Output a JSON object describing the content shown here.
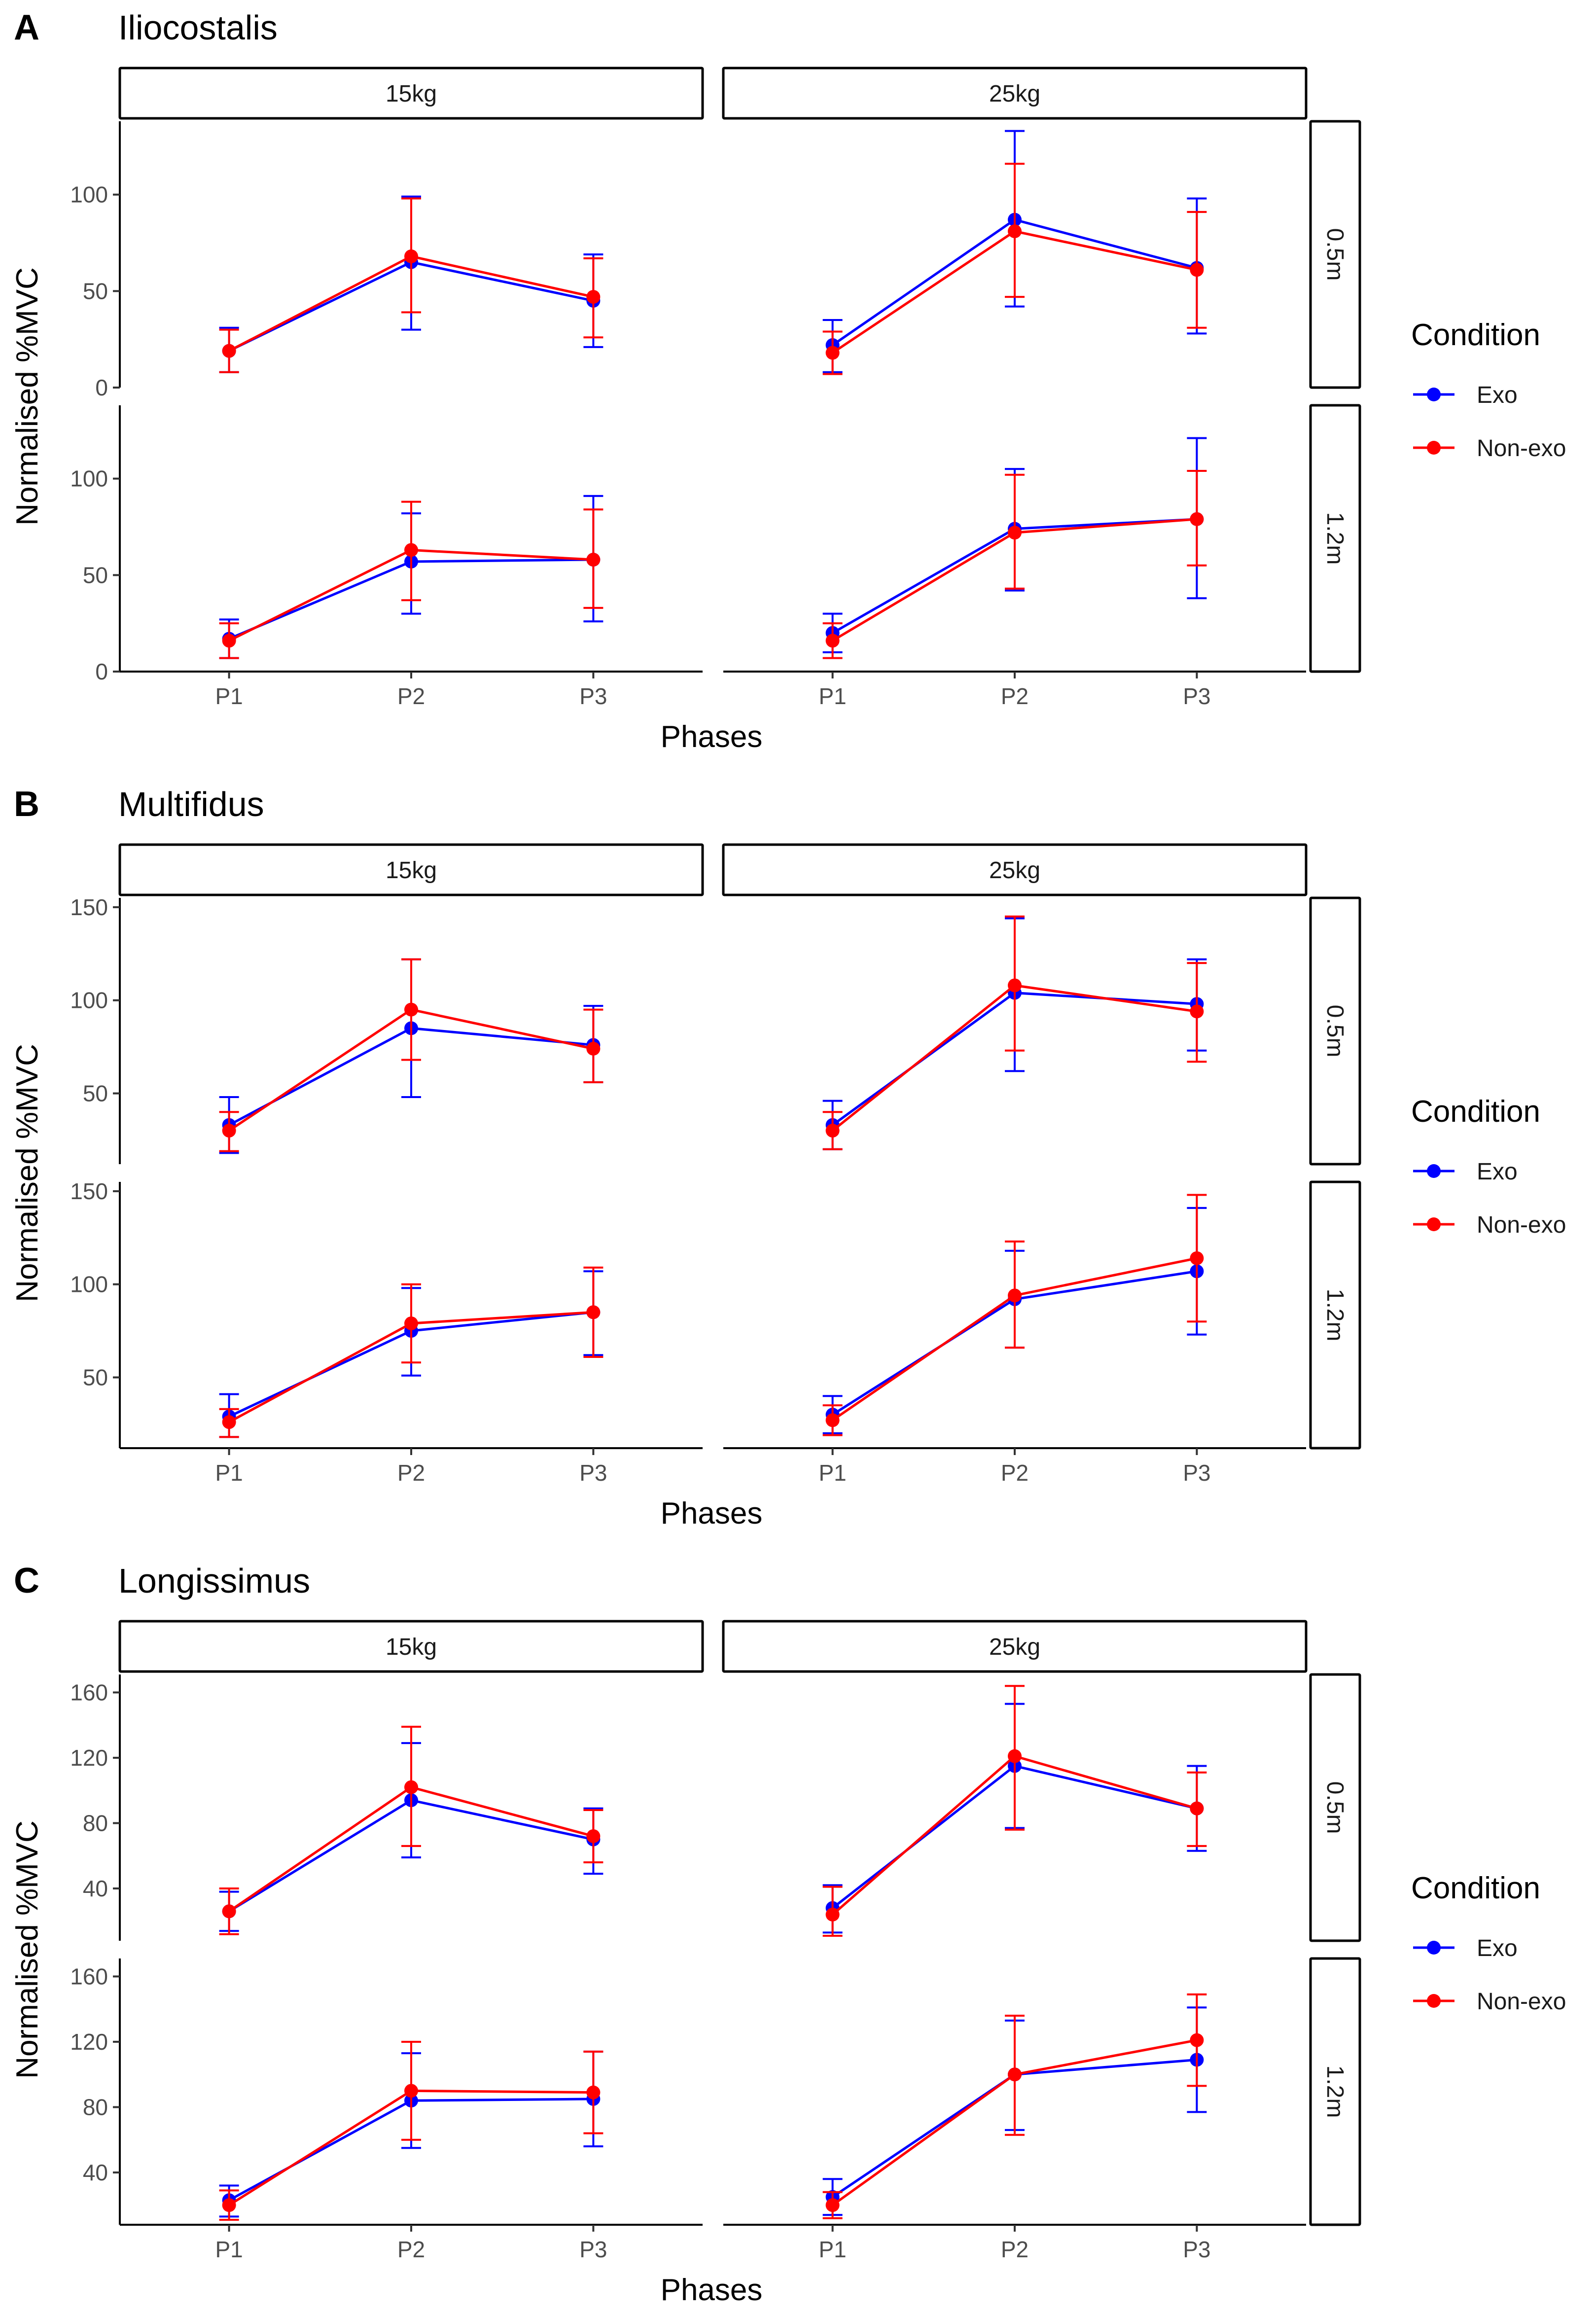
{
  "figure": {
    "legend": {
      "title": "Condition"
    },
    "x_axis_title": "Phases",
    "y_axis_title": "Normalised %MVC"
  },
  "chart_data": [
    {
      "type": "line",
      "panel_letter": "A",
      "title": "Iliocostalis",
      "xlabel": "Phases",
      "ylabel": "Normalised %MVC",
      "categories": [
        "P1",
        "P2",
        "P3"
      ],
      "column_facets": [
        "15kg",
        "25kg"
      ],
      "row_facets": [
        "0.5m",
        "1.2m"
      ],
      "ylim": [
        0,
        138
      ],
      "yticks": [
        0,
        50,
        100
      ],
      "legend": [
        {
          "name": "Exo",
          "color": "#0000ff"
        },
        {
          "name": "Non-exo",
          "color": "#ff0000"
        }
      ],
      "facets": [
        {
          "col": "15kg",
          "row": "0.5m",
          "series": [
            {
              "name": "Exo",
              "mean": [
                19,
                65,
                45
              ],
              "lower": [
                8,
                30,
                21
              ],
              "upper": [
                31,
                99,
                69
              ]
            },
            {
              "name": "Non-exo",
              "mean": [
                19,
                68,
                47
              ],
              "lower": [
                8,
                39,
                26
              ],
              "upper": [
                30,
                98,
                67
              ]
            }
          ]
        },
        {
          "col": "25kg",
          "row": "0.5m",
          "series": [
            {
              "name": "Exo",
              "mean": [
                22,
                87,
                62
              ],
              "lower": [
                8,
                42,
                28
              ],
              "upper": [
                35,
                133,
                98
              ]
            },
            {
              "name": "Non-exo",
              "mean": [
                18,
                81,
                61
              ],
              "lower": [
                7,
                47,
                31
              ],
              "upper": [
                29,
                116,
                91
              ]
            }
          ]
        },
        {
          "col": "15kg",
          "row": "1.2m",
          "series": [
            {
              "name": "Exo",
              "mean": [
                17,
                57,
                58
              ],
              "lower": [
                7,
                30,
                26
              ],
              "upper": [
                27,
                82,
                91
              ]
            },
            {
              "name": "Non-exo",
              "mean": [
                16,
                63,
                58
              ],
              "lower": [
                7,
                37,
                33
              ],
              "upper": [
                25,
                88,
                84
              ]
            }
          ]
        },
        {
          "col": "25kg",
          "row": "1.2m",
          "series": [
            {
              "name": "Exo",
              "mean": [
                20,
                74,
                79
              ],
              "lower": [
                10,
                42,
                38
              ],
              "upper": [
                30,
                105,
                121
              ]
            },
            {
              "name": "Non-exo",
              "mean": [
                16,
                72,
                79
              ],
              "lower": [
                7,
                43,
                55
              ],
              "upper": [
                25,
                102,
                104
              ]
            }
          ]
        }
      ]
    },
    {
      "type": "line",
      "panel_letter": "B",
      "title": "Multifidus",
      "xlabel": "Phases",
      "ylabel": "Normalised %MVC",
      "categories": [
        "P1",
        "P2",
        "P3"
      ],
      "column_facets": [
        "15kg",
        "25kg"
      ],
      "row_facets": [
        "0.5m",
        "1.2m"
      ],
      "ylim": [
        12,
        155
      ],
      "yticks": [
        50,
        100,
        150
      ],
      "legend": [
        {
          "name": "Exo",
          "color": "#0000ff"
        },
        {
          "name": "Non-exo",
          "color": "#ff0000"
        }
      ],
      "facets": [
        {
          "col": "15kg",
          "row": "0.5m",
          "series": [
            {
              "name": "Exo",
              "mean": [
                33,
                85,
                76
              ],
              "lower": [
                18,
                48,
                56
              ],
              "upper": [
                48,
                122,
                97
              ]
            },
            {
              "name": "Non-exo",
              "mean": [
                30,
                95,
                74
              ],
              "lower": [
                19,
                68,
                56
              ],
              "upper": [
                40,
                122,
                95
              ]
            }
          ]
        },
        {
          "col": "25kg",
          "row": "0.5m",
          "series": [
            {
              "name": "Exo",
              "mean": [
                33,
                104,
                98
              ],
              "lower": [
                20,
                62,
                73
              ],
              "upper": [
                46,
                144,
                122
              ]
            },
            {
              "name": "Non-exo",
              "mean": [
                30,
                108,
                94
              ],
              "lower": [
                20,
                73,
                67
              ],
              "upper": [
                40,
                145,
                120
              ]
            }
          ]
        },
        {
          "col": "15kg",
          "row": "1.2m",
          "series": [
            {
              "name": "Exo",
              "mean": [
                29,
                75,
                85
              ],
              "lower": [
                18,
                51,
                62
              ],
              "upper": [
                41,
                98,
                107
              ]
            },
            {
              "name": "Non-exo",
              "mean": [
                26,
                79,
                85
              ],
              "lower": [
                18,
                58,
                61
              ],
              "upper": [
                33,
                100,
                109
              ]
            }
          ]
        },
        {
          "col": "25kg",
          "row": "1.2m",
          "series": [
            {
              "name": "Exo",
              "mean": [
                30,
                92,
                107
              ],
              "lower": [
                20,
                66,
                73
              ],
              "upper": [
                40,
                118,
                141
              ]
            },
            {
              "name": "Non-exo",
              "mean": [
                27,
                94,
                114
              ],
              "lower": [
                19,
                66,
                80
              ],
              "upper": [
                35,
                123,
                148
              ]
            }
          ]
        }
      ]
    },
    {
      "type": "line",
      "panel_letter": "C",
      "title": "Longissimus",
      "xlabel": "Phases",
      "ylabel": "Normalised %MVC",
      "categories": [
        "P1",
        "P2",
        "P3"
      ],
      "column_facets": [
        "15kg",
        "25kg"
      ],
      "row_facets": [
        "0.5m",
        "1.2m"
      ],
      "ylim": [
        8,
        171
      ],
      "yticks": [
        40,
        80,
        120,
        160
      ],
      "legend": [
        {
          "name": "Exo",
          "color": "#0000ff"
        },
        {
          "name": "Non-exo",
          "color": "#ff0000"
        }
      ],
      "facets": [
        {
          "col": "15kg",
          "row": "0.5m",
          "series": [
            {
              "name": "Exo",
              "mean": [
                26,
                94,
                70
              ],
              "lower": [
                14,
                59,
                49
              ],
              "upper": [
                38,
                129,
                89
              ]
            },
            {
              "name": "Non-exo",
              "mean": [
                26,
                102,
                72
              ],
              "lower": [
                12,
                66,
                56
              ],
              "upper": [
                40,
                139,
                88
              ]
            }
          ]
        },
        {
          "col": "25kg",
          "row": "0.5m",
          "series": [
            {
              "name": "Exo",
              "mean": [
                28,
                115,
                89
              ],
              "lower": [
                13,
                77,
                63
              ],
              "upper": [
                42,
                153,
                115
              ]
            },
            {
              "name": "Non-exo",
              "mean": [
                24,
                121,
                89
              ],
              "lower": [
                11,
                76,
                66
              ],
              "upper": [
                41,
                164,
                111
              ]
            }
          ]
        },
        {
          "col": "15kg",
          "row": "1.2m",
          "series": [
            {
              "name": "Exo",
              "mean": [
                23,
                84,
                85
              ],
              "lower": [
                13,
                55,
                56
              ],
              "upper": [
                32,
                113,
                114
              ]
            },
            {
              "name": "Non-exo",
              "mean": [
                20,
                90,
                89
              ],
              "lower": [
                11,
                60,
                64
              ],
              "upper": [
                29,
                120,
                114
              ]
            }
          ]
        },
        {
          "col": "25kg",
          "row": "1.2m",
          "series": [
            {
              "name": "Exo",
              "mean": [
                25,
                100,
                109
              ],
              "lower": [
                14,
                66,
                77
              ],
              "upper": [
                36,
                133,
                141
              ]
            },
            {
              "name": "Non-exo",
              "mean": [
                20,
                100,
                121
              ],
              "lower": [
                12,
                63,
                93
              ],
              "upper": [
                28,
                136,
                149
              ]
            }
          ]
        }
      ]
    }
  ]
}
